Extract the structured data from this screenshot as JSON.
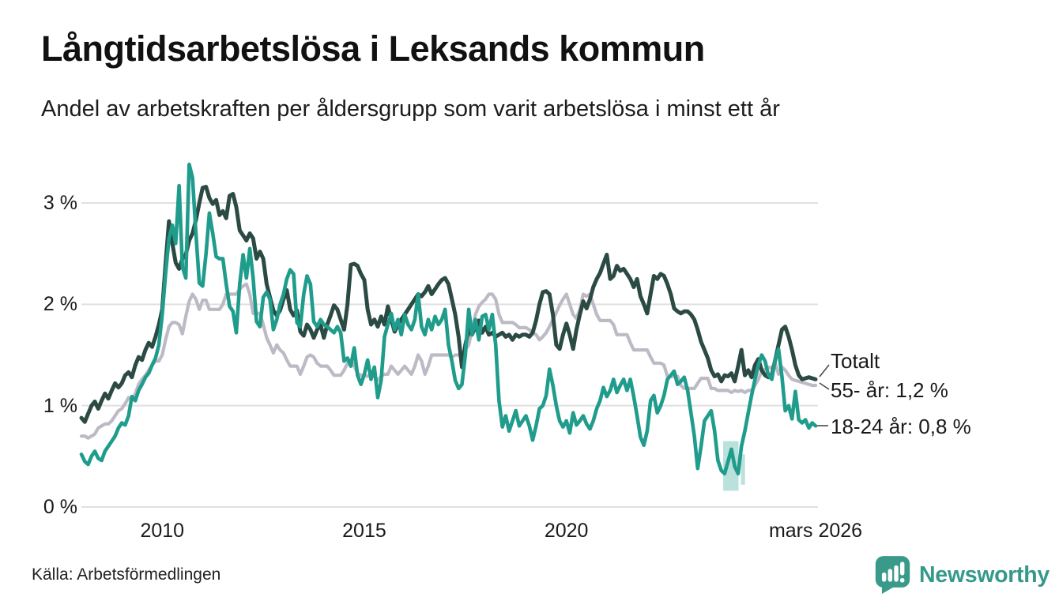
{
  "header": {
    "title": "Långtidsarbetslösa i Leksands kommun",
    "subtitle": "Andel av arbetskraften per åldersgrupp som varit arbetslösa i minst ett år"
  },
  "source": {
    "label": "Källa: Arbetsförmedlingen"
  },
  "branding": {
    "name": "Newsworthy",
    "color": "#35998a"
  },
  "chart_data": {
    "type": "line",
    "title": "Långtidsarbetslösa i Leksands kommun",
    "subtitle": "Andel av arbetskraften per åldersgrupp som varit arbetslösa i minst ett år",
    "x_unit": "month",
    "x_start": "2008-01",
    "x_end": "2026-03",
    "ylim": [
      0,
      3.45
    ],
    "grid": true,
    "grid_color": "#e0e0e0",
    "y_ticks": [
      {
        "value": 0,
        "label": "0 %"
      },
      {
        "value": 1,
        "label": "1 %"
      },
      {
        "value": 2,
        "label": "2 %"
      },
      {
        "value": 3,
        "label": "3 %"
      }
    ],
    "x_ticks": [
      {
        "index": 24,
        "label": "2010"
      },
      {
        "index": 84,
        "label": "2015"
      },
      {
        "index": 144,
        "label": "2020"
      },
      {
        "index": 218,
        "label": "mars 2026"
      }
    ],
    "bands": [
      {
        "from": 2023.88,
        "to": 2024.26,
        "top": 0.65,
        "bottom": 0.16,
        "color": "rgba(31,156,139,0.3)"
      },
      {
        "from": 2024.32,
        "to": 2024.42,
        "top": 0.52,
        "bottom": 0.22,
        "color": "rgba(31,156,139,0.3)"
      }
    ],
    "series": [
      {
        "name": "55- år",
        "color": "#bdbac5",
        "values": [
          0.7,
          0.7,
          0.68,
          0.7,
          0.72,
          0.78,
          0.8,
          0.82,
          0.82,
          0.85,
          0.9,
          0.95,
          0.97,
          1.02,
          1.08,
          1.05,
          1.12,
          1.21,
          1.26,
          1.3,
          1.35,
          1.4,
          1.44,
          1.44,
          1.5,
          1.65,
          1.78,
          1.82,
          1.82,
          1.8,
          1.71,
          1.88,
          2.03,
          2.1,
          2.05,
          1.95,
          2.04,
          2.04,
          1.95,
          1.95,
          1.95,
          1.95,
          2.0,
          2.1,
          2.1,
          2.1,
          2.1,
          2.15,
          2.18,
          2.2,
          2.1,
          1.91,
          1.91,
          1.91,
          1.8,
          1.67,
          1.6,
          1.52,
          1.6,
          1.55,
          1.52,
          1.45,
          1.39,
          1.39,
          1.39,
          1.31,
          1.39,
          1.48,
          1.5,
          1.48,
          1.42,
          1.39,
          1.39,
          1.39,
          1.35,
          1.3,
          1.3,
          1.3,
          1.35,
          1.42,
          1.45,
          1.39,
          1.32,
          1.3,
          1.3,
          1.29,
          1.31,
          1.29,
          1.25,
          1.29,
          1.31,
          1.31,
          1.39,
          1.35,
          1.31,
          1.35,
          1.39,
          1.35,
          1.31,
          1.39,
          1.5,
          1.44,
          1.31,
          1.39,
          1.5,
          1.5,
          1.5,
          1.5,
          1.5,
          1.5,
          1.48,
          1.5,
          1.5,
          1.52,
          1.55,
          1.6,
          1.75,
          1.9,
          1.98,
          2.02,
          2.05,
          2.1,
          2.1,
          2.05,
          1.9,
          1.82,
          1.82,
          1.82,
          1.82,
          1.8,
          1.77,
          1.77,
          1.77,
          1.75,
          1.72,
          1.7,
          1.65,
          1.68,
          1.72,
          1.78,
          1.85,
          1.92,
          1.99,
          2.05,
          2.1,
          2.0,
          1.9,
          1.86,
          1.95,
          2.1,
          2.08,
          2.1,
          2.0,
          1.9,
          1.84,
          1.84,
          1.84,
          1.84,
          1.8,
          1.7,
          1.7,
          1.7,
          1.7,
          1.62,
          1.55,
          1.55,
          1.55,
          1.55,
          1.55,
          1.48,
          1.42,
          1.42,
          1.42,
          1.4,
          1.29,
          1.29,
          1.29,
          1.29,
          1.2,
          1.17,
          1.17,
          1.17,
          1.17,
          1.22,
          1.27,
          1.27,
          1.27,
          1.17,
          1.17,
          1.15,
          1.15,
          1.15,
          1.15,
          1.13,
          1.15,
          1.14,
          1.15,
          1.13,
          1.15,
          1.15,
          1.2,
          1.26,
          1.34,
          1.36,
          1.38,
          1.37,
          1.42,
          1.31,
          1.38,
          1.35,
          1.3,
          1.26,
          1.25,
          1.24,
          1.23,
          1.22,
          1.21,
          1.2,
          1.2
        ]
      },
      {
        "name": "Totalt",
        "color": "#2b4a43",
        "values": [
          0.88,
          0.84,
          0.92,
          1.0,
          1.04,
          0.97,
          1.05,
          1.12,
          1.07,
          1.15,
          1.22,
          1.18,
          1.22,
          1.3,
          1.33,
          1.28,
          1.4,
          1.48,
          1.45,
          1.55,
          1.62,
          1.58,
          1.68,
          1.8,
          1.95,
          2.4,
          2.82,
          2.6,
          2.41,
          2.35,
          2.45,
          2.49,
          2.63,
          2.7,
          2.83,
          3.0,
          3.15,
          3.16,
          3.05,
          2.99,
          3.03,
          2.88,
          2.92,
          2.85,
          3.07,
          3.09,
          2.96,
          2.73,
          2.68,
          2.63,
          2.7,
          2.65,
          2.45,
          2.52,
          2.45,
          2.2,
          2.07,
          1.94,
          1.89,
          1.94,
          2.05,
          2.14,
          1.95,
          1.89,
          1.94,
          1.73,
          1.69,
          1.8,
          1.75,
          1.67,
          1.75,
          1.8,
          1.67,
          1.8,
          1.89,
          1.99,
          1.95,
          1.85,
          1.75,
          2.0,
          2.39,
          2.4,
          2.38,
          2.3,
          2.24,
          1.95,
          1.8,
          1.85,
          1.78,
          1.88,
          1.8,
          1.98,
          1.85,
          1.73,
          1.8,
          1.85,
          1.9,
          1.95,
          2.0,
          2.05,
          2.1,
          2.08,
          2.12,
          2.18,
          2.1,
          2.15,
          2.2,
          2.24,
          2.26,
          2.2,
          2.05,
          1.9,
          1.68,
          1.38,
          1.6,
          1.75,
          1.7,
          1.78,
          1.84,
          1.72,
          1.78,
          1.7,
          1.72,
          1.68,
          1.7,
          1.72,
          1.68,
          1.7,
          1.65,
          1.7,
          1.68,
          1.7,
          1.7,
          1.68,
          1.72,
          1.84,
          2.0,
          2.12,
          2.13,
          2.1,
          1.9,
          1.6,
          1.56,
          1.7,
          1.81,
          1.7,
          1.56,
          1.75,
          1.9,
          2.03,
          1.96,
          2.05,
          2.17,
          2.25,
          2.31,
          2.4,
          2.49,
          2.25,
          2.28,
          2.38,
          2.33,
          2.35,
          2.3,
          2.25,
          2.17,
          2.25,
          2.08,
          2.0,
          1.91,
          2.1,
          2.28,
          2.25,
          2.3,
          2.28,
          2.2,
          2.1,
          1.96,
          1.93,
          1.91,
          1.93,
          1.93,
          1.9,
          1.85,
          1.75,
          1.63,
          1.55,
          1.47,
          1.35,
          1.29,
          1.31,
          1.24,
          1.3,
          1.29,
          1.32,
          1.24,
          1.39,
          1.55,
          1.3,
          1.35,
          1.28,
          1.4,
          1.46,
          1.35,
          1.3,
          1.28,
          1.3,
          1.45,
          1.6,
          1.75,
          1.78,
          1.68,
          1.55,
          1.4,
          1.3,
          1.26,
          1.27,
          1.28,
          1.27,
          1.26
        ]
      },
      {
        "name": "18-24 år",
        "color": "#1f9c8b",
        "values": [
          0.52,
          0.45,
          0.42,
          0.5,
          0.55,
          0.48,
          0.46,
          0.55,
          0.6,
          0.65,
          0.7,
          0.78,
          0.83,
          0.81,
          0.9,
          1.09,
          1.05,
          1.15,
          1.21,
          1.28,
          1.32,
          1.4,
          1.47,
          1.6,
          1.9,
          2.3,
          2.65,
          2.78,
          2.6,
          3.17,
          2.37,
          2.26,
          3.38,
          3.25,
          2.7,
          2.21,
          2.18,
          2.5,
          2.9,
          2.7,
          2.47,
          2.45,
          2.45,
          2.2,
          1.98,
          1.93,
          1.72,
          2.2,
          2.49,
          2.26,
          2.55,
          2.26,
          1.83,
          1.78,
          2.07,
          2.12,
          2.05,
          1.75,
          1.85,
          2.0,
          2.1,
          2.25,
          2.34,
          2.3,
          1.82,
          1.78,
          2.1,
          2.28,
          2.2,
          1.83,
          1.78,
          1.85,
          1.8,
          1.78,
          1.75,
          1.72,
          1.78,
          1.72,
          1.44,
          1.47,
          1.39,
          1.57,
          1.3,
          1.21,
          1.31,
          1.45,
          1.26,
          1.38,
          1.08,
          1.25,
          1.68,
          1.8,
          1.91,
          1.75,
          1.85,
          1.7,
          1.9,
          1.8,
          1.75,
          1.85,
          2.1,
          1.78,
          1.7,
          1.85,
          1.75,
          1.88,
          1.8,
          1.85,
          1.95,
          1.6,
          1.44,
          1.25,
          1.17,
          1.21,
          1.5,
          1.95,
          1.7,
          1.85,
          1.65,
          1.88,
          1.9,
          1.75,
          1.9,
          1.6,
          1.05,
          0.79,
          0.9,
          0.75,
          0.85,
          0.95,
          0.8,
          0.85,
          0.9,
          0.8,
          0.66,
          0.8,
          0.97,
          1.0,
          1.1,
          1.36,
          1.2,
          1.0,
          0.85,
          0.79,
          0.85,
          0.73,
          0.93,
          0.81,
          0.85,
          0.9,
          0.82,
          0.77,
          0.85,
          0.97,
          1.05,
          1.18,
          1.09,
          1.15,
          1.26,
          1.13,
          1.2,
          1.26,
          1.15,
          1.26,
          1.09,
          0.9,
          0.69,
          0.61,
          0.75,
          1.05,
          1.1,
          0.93,
          1.0,
          1.1,
          1.26,
          1.3,
          1.34,
          1.21,
          1.24,
          1.28,
          1.15,
          0.93,
          0.7,
          0.38,
          0.6,
          0.85,
          0.9,
          0.95,
          0.75,
          0.46,
          0.36,
          0.33,
          0.45,
          0.57,
          0.4,
          0.33,
          0.6,
          0.75,
          0.93,
          1.1,
          1.26,
          1.4,
          1.5,
          1.44,
          1.3,
          1.26,
          1.45,
          1.56,
          1.29,
          0.95,
          1.0,
          0.87,
          1.14,
          0.86,
          0.83,
          0.86,
          0.78,
          0.83,
          0.8
        ]
      }
    ],
    "annotations": [
      {
        "label": "Totalt",
        "series": "Totalt",
        "end_value": 1.26,
        "pointer": [
          1037,
          477,
          1049,
          462
        ]
      },
      {
        "label": "55- år: 1,2 %",
        "series": "55- år",
        "end_value": 1.2,
        "pointer": [
          1037,
          485,
          1049,
          493
        ]
      },
      {
        "label": "18-24 år: 0,8 %",
        "series": "18-24 år",
        "end_value": 0.8,
        "pointer": [
          1034,
          539,
          1048,
          539
        ]
      }
    ],
    "legend_position": "right-end-labels"
  }
}
